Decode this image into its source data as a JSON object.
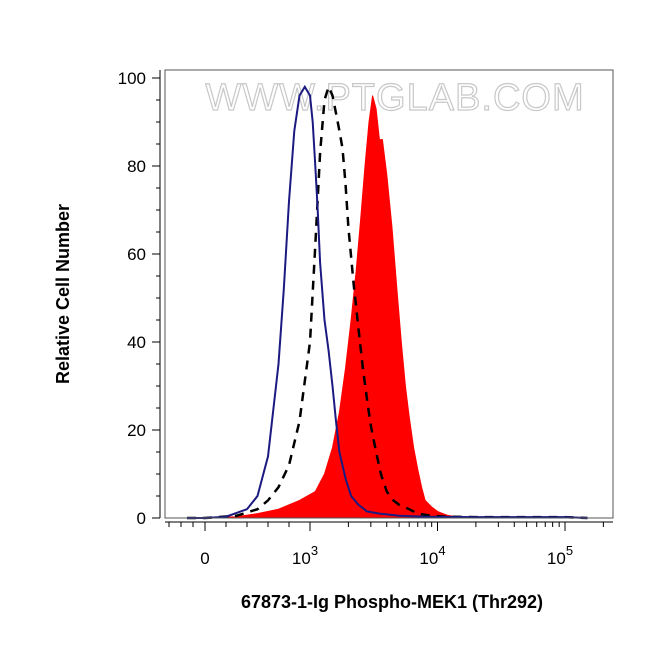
{
  "chart_data": {
    "type": "area",
    "title": "",
    "xlabel": "67873-1-Ig Phospho-MEK1 (Thr292)",
    "ylabel": "Relative Cell Number",
    "x_scale": "biexponential",
    "xlim": [
      -700,
      150000
    ],
    "ylim": [
      0,
      100
    ],
    "x_ticks": [
      {
        "value": 0,
        "base": "0",
        "exp": ""
      },
      {
        "value": 1000,
        "base": "10",
        "exp": "3"
      },
      {
        "value": 10000,
        "base": "10",
        "exp": "4"
      },
      {
        "value": 100000,
        "base": "10",
        "exp": "5"
      }
    ],
    "y_ticks": [
      0,
      20,
      40,
      60,
      80,
      100
    ],
    "watermark": "WWW.PTGLAB.COM",
    "grid": false,
    "legend": "none",
    "series": [
      {
        "style": "filled",
        "color": "#ff0000",
        "x": [
          -300,
          0,
          300,
          500,
          700,
          900,
          1100,
          1300,
          1500,
          1700,
          1900,
          2100,
          2300,
          2500,
          2700,
          2900,
          3100,
          3300,
          3500,
          3700,
          4000,
          4400,
          4800,
          5200,
          5600,
          6000,
          6500,
          7000,
          7500,
          8000,
          9000,
          10000,
          11000,
          12000,
          14000,
          16000,
          20000,
          40000,
          100000,
          150000
        ],
        "y": [
          0,
          0,
          0.3,
          1,
          2,
          4,
          6,
          10,
          16,
          24,
          34,
          45,
          56,
          68,
          80,
          90,
          96,
          93,
          86,
          86,
          78,
          66,
          52,
          40,
          30,
          23,
          16,
          11,
          7,
          4,
          2.5,
          1.5,
          1,
          0.6,
          0.3,
          0.2,
          0.2,
          0.2,
          0.2,
          0
        ]
      },
      {
        "style": "dashed",
        "color": "#000000",
        "x": [
          -300,
          0,
          300,
          500,
          600,
          700,
          800,
          900,
          1000,
          1100,
          1200,
          1300,
          1400,
          1500,
          1600,
          1700,
          1800,
          1900,
          2000,
          2200,
          2400,
          2600,
          2800,
          3000,
          3300,
          3600,
          4000,
          4500,
          5000,
          6000,
          7000,
          9000,
          12000,
          20000,
          40000,
          100000,
          150000
        ],
        "y": [
          0,
          0,
          0.5,
          2,
          4,
          7,
          12,
          22,
          40,
          62,
          83,
          95,
          98,
          96,
          92,
          88,
          84,
          76,
          66,
          53,
          43,
          34,
          27,
          21,
          15,
          10,
          6,
          4,
          3,
          2,
          1,
          0.5,
          0.3,
          0.2,
          0.2,
          0.2,
          0
        ]
      },
      {
        "style": "line",
        "color": "#1a1a80",
        "x": [
          -300,
          0,
          200,
          400,
          500,
          600,
          700,
          750,
          800,
          850,
          900,
          950,
          1000,
          1050,
          1100,
          1150,
          1200,
          1300,
          1400,
          1500,
          1600,
          1700,
          1900,
          2100,
          2400,
          2800,
          3500,
          5000,
          8000,
          20000,
          100000,
          150000
        ],
        "y": [
          0,
          0,
          0.3,
          2,
          5,
          14,
          35,
          52,
          72,
          88,
          96,
          98,
          96,
          90,
          80,
          70,
          58,
          45,
          38,
          30,
          22,
          15,
          9,
          5,
          3,
          1.5,
          1,
          0.5,
          0.3,
          0.2,
          0.2,
          0
        ]
      }
    ]
  }
}
